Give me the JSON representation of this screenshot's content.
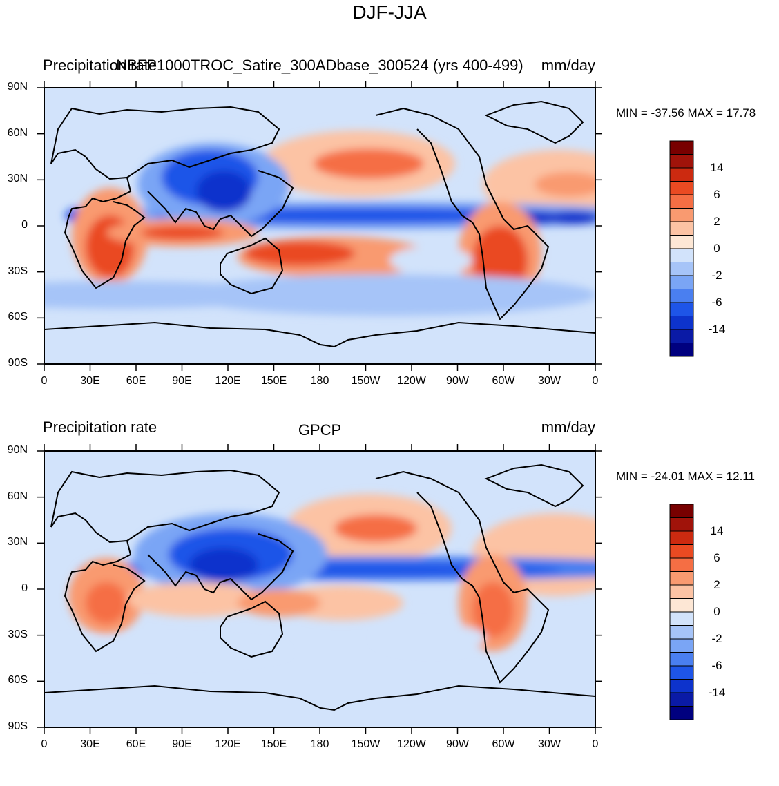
{
  "title": "DJF-JJA",
  "colors": {
    "levels": [
      "#00007f",
      "#0a1aa6",
      "#0d33cc",
      "#1e55e8",
      "#4a7ff0",
      "#7aa5f5",
      "#a6c4f8",
      "#d2e3fb",
      "#fde7d5",
      "#fcc3a4",
      "#f99a70",
      "#f56e44",
      "#ea4a22",
      "#cc2a10",
      "#a0130a",
      "#780000"
    ],
    "coast": "#000000"
  },
  "colorbar_labels": [
    "14",
    "6",
    "2",
    "0",
    "-2",
    "-6",
    "-14"
  ],
  "x_ticks": [
    "0",
    "30E",
    "60E",
    "90E",
    "120E",
    "150E",
    "180",
    "150W",
    "120W",
    "90W",
    "60W",
    "30W",
    "0"
  ],
  "y_ticks": [
    "90N",
    "60N",
    "30N",
    "0",
    "30S",
    "60S",
    "90S"
  ],
  "panels": [
    {
      "left_label": "Precipitation rate",
      "center_label": "NBFP1000TROC_Satire_300ADbase_300524 (yrs 400-499)",
      "right_label": "mm/day",
      "stats": "MIN = -37.56 MAX =  17.78"
    },
    {
      "left_label": "Precipitation rate",
      "center_label": "GPCP",
      "right_label": "mm/day",
      "stats": "MIN = -24.01 MAX =  12.11"
    }
  ]
}
